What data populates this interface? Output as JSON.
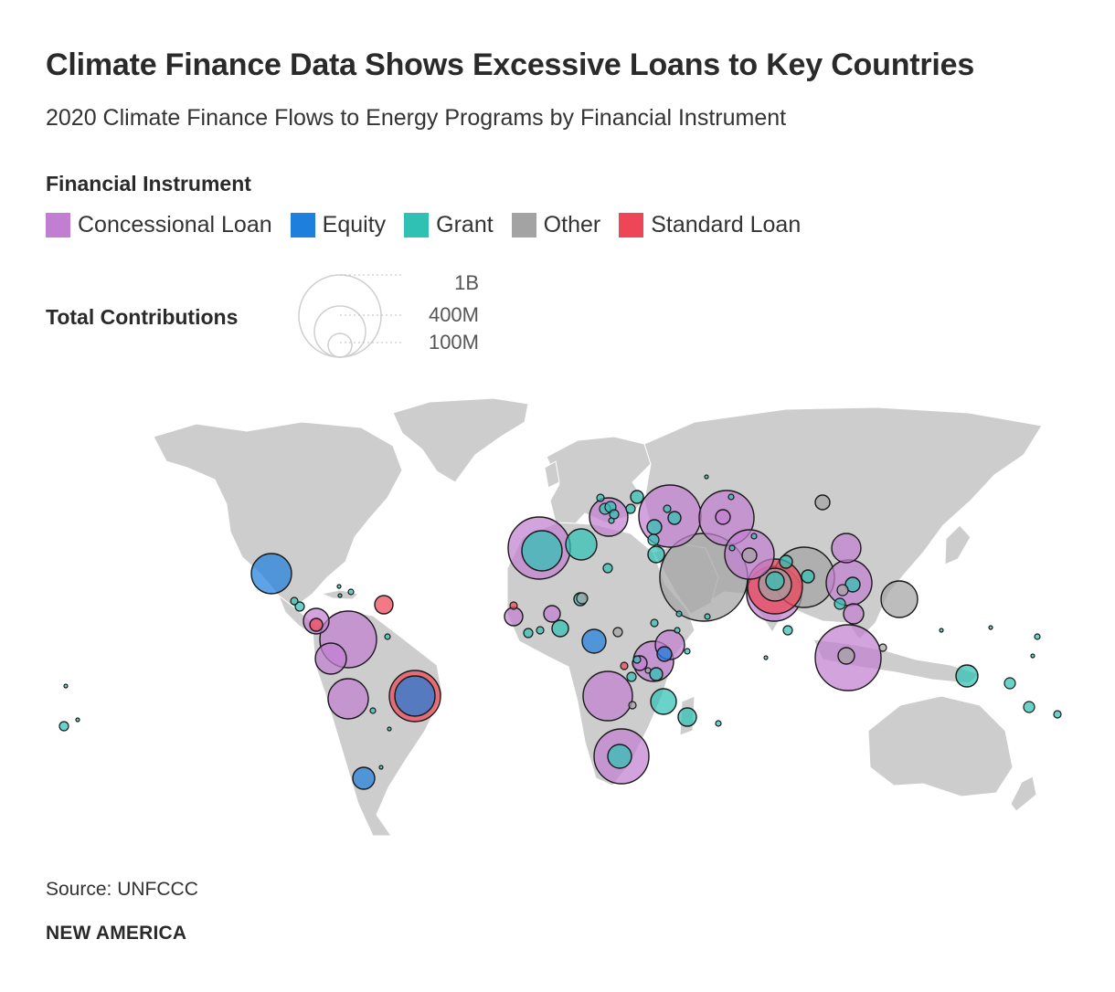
{
  "title": "Climate Finance Data Shows Excessive Loans to Key Countries",
  "subtitle": "2020 Climate Finance Flows to Energy Programs by Financial Instrument",
  "legend": {
    "title": "Financial Instrument",
    "items": [
      {
        "label": "Concessional Loan",
        "color": "#c27fd1"
      },
      {
        "label": "Equity",
        "color": "#1f7fdc"
      },
      {
        "label": "Grant",
        "color": "#2fc2b4"
      },
      {
        "label": "Other",
        "color": "#a3a3a3"
      },
      {
        "label": "Standard Loan",
        "color": "#ee4656"
      }
    ]
  },
  "size_legend": {
    "title": "Total Contributions",
    "labels": [
      "1B",
      "400M",
      "100M"
    ]
  },
  "source": "Source: UNFCCC",
  "brand": "NEW AMERICA",
  "map_colors": {
    "land": "#cdcdcd",
    "border": "#ffffff",
    "bubble_stroke": "#1a1a1a"
  }
}
